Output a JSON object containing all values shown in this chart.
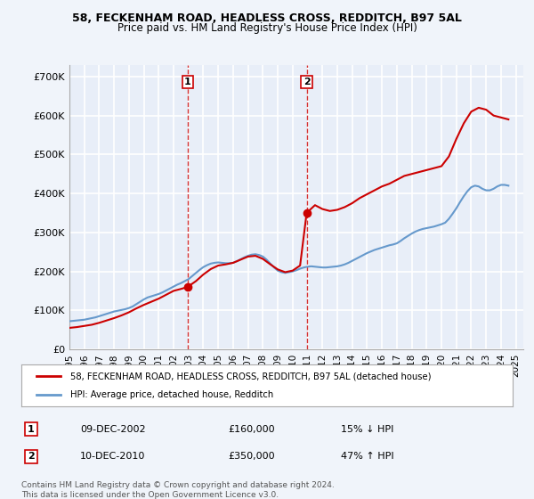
{
  "title1": "58, FECKENHAM ROAD, HEADLESS CROSS, REDDITCH, B97 5AL",
  "title2": "Price paid vs. HM Land Registry's House Price Index (HPI)",
  "ylabel_ticks": [
    "£0",
    "£100K",
    "£200K",
    "£300K",
    "£400K",
    "£500K",
    "£600K",
    "£700K"
  ],
  "ytick_vals": [
    0,
    100000,
    200000,
    300000,
    400000,
    500000,
    600000,
    700000
  ],
  "ylim": [
    0,
    730000
  ],
  "xlim_start": 1995.0,
  "xlim_end": 2025.5,
  "background_color": "#f0f4fa",
  "plot_bg_color": "#e8eef8",
  "grid_color": "#ffffff",
  "hpi_color": "#6699cc",
  "price_color": "#cc0000",
  "sale1_x": 2002.94,
  "sale1_y": 160000,
  "sale2_x": 2010.94,
  "sale2_y": 350000,
  "legend_label1": "58, FECKENHAM ROAD, HEADLESS CROSS, REDDITCH, B97 5AL (detached house)",
  "legend_label2": "HPI: Average price, detached house, Redditch",
  "table_row1": [
    "1",
    "09-DEC-2002",
    "£160,000",
    "15% ↓ HPI"
  ],
  "table_row2": [
    "2",
    "10-DEC-2010",
    "£350,000",
    "47% ↑ HPI"
  ],
  "footnote": "Contains HM Land Registry data © Crown copyright and database right 2024.\nThis data is licensed under the Open Government Licence v3.0.",
  "hpi_years": [
    1995.0,
    1995.25,
    1995.5,
    1995.75,
    1996.0,
    1996.25,
    1996.5,
    1996.75,
    1997.0,
    1997.25,
    1997.5,
    1997.75,
    1998.0,
    1998.25,
    1998.5,
    1998.75,
    1999.0,
    1999.25,
    1999.5,
    1999.75,
    2000.0,
    2000.25,
    2000.5,
    2000.75,
    2001.0,
    2001.25,
    2001.5,
    2001.75,
    2002.0,
    2002.25,
    2002.5,
    2002.75,
    2003.0,
    2003.25,
    2003.5,
    2003.75,
    2004.0,
    2004.25,
    2004.5,
    2004.75,
    2005.0,
    2005.25,
    2005.5,
    2005.75,
    2006.0,
    2006.25,
    2006.5,
    2006.75,
    2007.0,
    2007.25,
    2007.5,
    2007.75,
    2008.0,
    2008.25,
    2008.5,
    2008.75,
    2009.0,
    2009.25,
    2009.5,
    2009.75,
    2010.0,
    2010.25,
    2010.5,
    2010.75,
    2011.0,
    2011.25,
    2011.5,
    2011.75,
    2012.0,
    2012.25,
    2012.5,
    2012.75,
    2013.0,
    2013.25,
    2013.5,
    2013.75,
    2014.0,
    2014.25,
    2014.5,
    2014.75,
    2015.0,
    2015.25,
    2015.5,
    2015.75,
    2016.0,
    2016.25,
    2016.5,
    2016.75,
    2017.0,
    2017.25,
    2017.5,
    2017.75,
    2018.0,
    2018.25,
    2018.5,
    2018.75,
    2019.0,
    2019.25,
    2019.5,
    2019.75,
    2020.0,
    2020.25,
    2020.5,
    2020.75,
    2021.0,
    2021.25,
    2021.5,
    2021.75,
    2022.0,
    2022.25,
    2022.5,
    2022.75,
    2023.0,
    2023.25,
    2023.5,
    2023.75,
    2024.0,
    2024.25,
    2024.5
  ],
  "hpi_values": [
    72000,
    73000,
    74000,
    75000,
    76000,
    78000,
    80000,
    82000,
    85000,
    88000,
    91000,
    94000,
    97000,
    99000,
    101000,
    103000,
    106000,
    110000,
    116000,
    122000,
    128000,
    133000,
    136000,
    139000,
    142000,
    146000,
    151000,
    156000,
    161000,
    166000,
    170000,
    175000,
    180000,
    188000,
    196000,
    204000,
    211000,
    216000,
    220000,
    222000,
    223000,
    222000,
    221000,
    221000,
    222000,
    226000,
    231000,
    236000,
    240000,
    243000,
    244000,
    242000,
    238000,
    230000,
    220000,
    210000,
    202000,
    198000,
    196000,
    198000,
    200000,
    203000,
    207000,
    210000,
    212000,
    213000,
    212000,
    211000,
    210000,
    210000,
    211000,
    212000,
    213000,
    215000,
    218000,
    222000,
    227000,
    232000,
    237000,
    242000,
    247000,
    251000,
    255000,
    258000,
    261000,
    264000,
    267000,
    269000,
    272000,
    278000,
    285000,
    291000,
    297000,
    302000,
    306000,
    309000,
    311000,
    313000,
    315000,
    318000,
    321000,
    325000,
    335000,
    348000,
    362000,
    378000,
    393000,
    406000,
    416000,
    420000,
    418000,
    412000,
    408000,
    408000,
    412000,
    418000,
    422000,
    422000,
    420000
  ],
  "price_years": [
    1995.0,
    1995.5,
    1996.0,
    1996.5,
    1997.0,
    1997.5,
    1998.0,
    1998.5,
    1999.0,
    1999.5,
    2000.0,
    2000.5,
    2001.0,
    2001.5,
    2002.0,
    2002.5,
    2002.94,
    2003.5,
    2004.0,
    2004.5,
    2005.0,
    2005.5,
    2006.0,
    2006.5,
    2007.0,
    2007.5,
    2008.0,
    2008.5,
    2009.0,
    2009.5,
    2010.0,
    2010.5,
    2010.94,
    2011.5,
    2012.0,
    2012.5,
    2013.0,
    2013.5,
    2014.0,
    2014.5,
    2015.0,
    2015.5,
    2016.0,
    2016.5,
    2017.0,
    2017.5,
    2018.0,
    2018.5,
    2019.0,
    2019.5,
    2020.0,
    2020.5,
    2021.0,
    2021.5,
    2022.0,
    2022.5,
    2023.0,
    2023.5,
    2024.0,
    2024.5
  ],
  "price_values": [
    55000,
    57000,
    60000,
    63000,
    68000,
    74000,
    80000,
    87000,
    95000,
    105000,
    114000,
    122000,
    130000,
    140000,
    150000,
    155000,
    160000,
    175000,
    192000,
    206000,
    215000,
    218000,
    222000,
    230000,
    238000,
    240000,
    232000,
    218000,
    205000,
    198000,
    202000,
    215000,
    350000,
    370000,
    360000,
    355000,
    358000,
    365000,
    375000,
    388000,
    398000,
    408000,
    418000,
    425000,
    435000,
    445000,
    450000,
    455000,
    460000,
    465000,
    470000,
    495000,
    540000,
    580000,
    610000,
    620000,
    615000,
    600000,
    595000,
    590000
  ],
  "xtick_years": [
    1995,
    1996,
    1997,
    1998,
    1999,
    2000,
    2001,
    2002,
    2003,
    2004,
    2005,
    2006,
    2007,
    2008,
    2009,
    2010,
    2011,
    2012,
    2013,
    2014,
    2015,
    2016,
    2017,
    2018,
    2019,
    2020,
    2021,
    2022,
    2023,
    2024,
    2025
  ]
}
